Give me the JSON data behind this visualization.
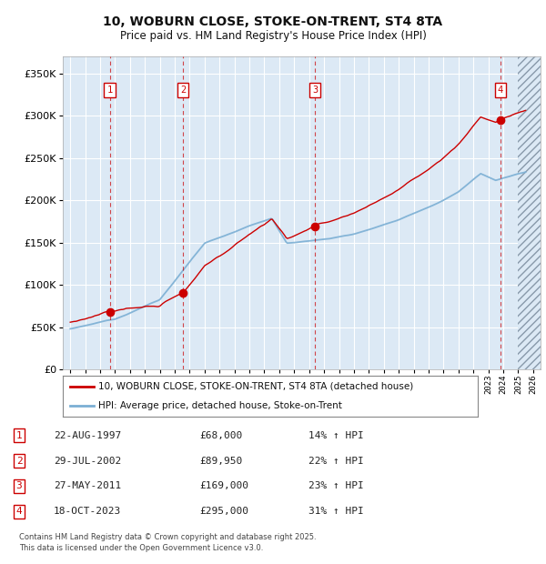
{
  "title": "10, WOBURN CLOSE, STOKE-ON-TRENT, ST4 8TA",
  "subtitle": "Price paid vs. HM Land Registry's House Price Index (HPI)",
  "xlim": [
    1994.5,
    2026.5
  ],
  "ylim": [
    0,
    370000
  ],
  "yticks": [
    0,
    50000,
    100000,
    150000,
    200000,
    250000,
    300000,
    350000
  ],
  "ytick_labels": [
    "£0",
    "£50K",
    "£100K",
    "£150K",
    "£200K",
    "£250K",
    "£300K",
    "£350K"
  ],
  "xticks": [
    1995,
    1996,
    1997,
    1998,
    1999,
    2000,
    2001,
    2002,
    2003,
    2004,
    2005,
    2006,
    2007,
    2008,
    2009,
    2010,
    2011,
    2012,
    2013,
    2014,
    2015,
    2016,
    2017,
    2018,
    2019,
    2020,
    2021,
    2022,
    2023,
    2024,
    2025,
    2026
  ],
  "hpi_line_color": "#7bafd4",
  "price_line_color": "#cc0000",
  "dot_color": "#cc0000",
  "vline_color": "#cc0000",
  "background_color": "#dce9f5",
  "grid_color": "#ffffff",
  "hatch_start": 2025.0,
  "sale_markers": [
    {
      "label": "1",
      "year": 1997.64,
      "price": 68000
    },
    {
      "label": "2",
      "year": 2002.57,
      "price": 89950
    },
    {
      "label": "3",
      "year": 2011.4,
      "price": 169000
    },
    {
      "label": "4",
      "year": 2023.8,
      "price": 295000
    }
  ],
  "legend_entries": [
    "10, WOBURN CLOSE, STOKE-ON-TRENT, ST4 8TA (detached house)",
    "HPI: Average price, detached house, Stoke-on-Trent"
  ],
  "table_data": [
    {
      "num": "1",
      "date": "22-AUG-1997",
      "price": "£68,000",
      "hpi": "14% ↑ HPI"
    },
    {
      "num": "2",
      "date": "29-JUL-2002",
      "price": "£89,950",
      "hpi": "22% ↑ HPI"
    },
    {
      "num": "3",
      "date": "27-MAY-2011",
      "price": "£169,000",
      "hpi": "23% ↑ HPI"
    },
    {
      "num": "4",
      "date": "18-OCT-2023",
      "price": "£295,000",
      "hpi": "31% ↑ HPI"
    }
  ],
  "footer": "Contains HM Land Registry data © Crown copyright and database right 2025.\nThis data is licensed under the Open Government Licence v3.0."
}
